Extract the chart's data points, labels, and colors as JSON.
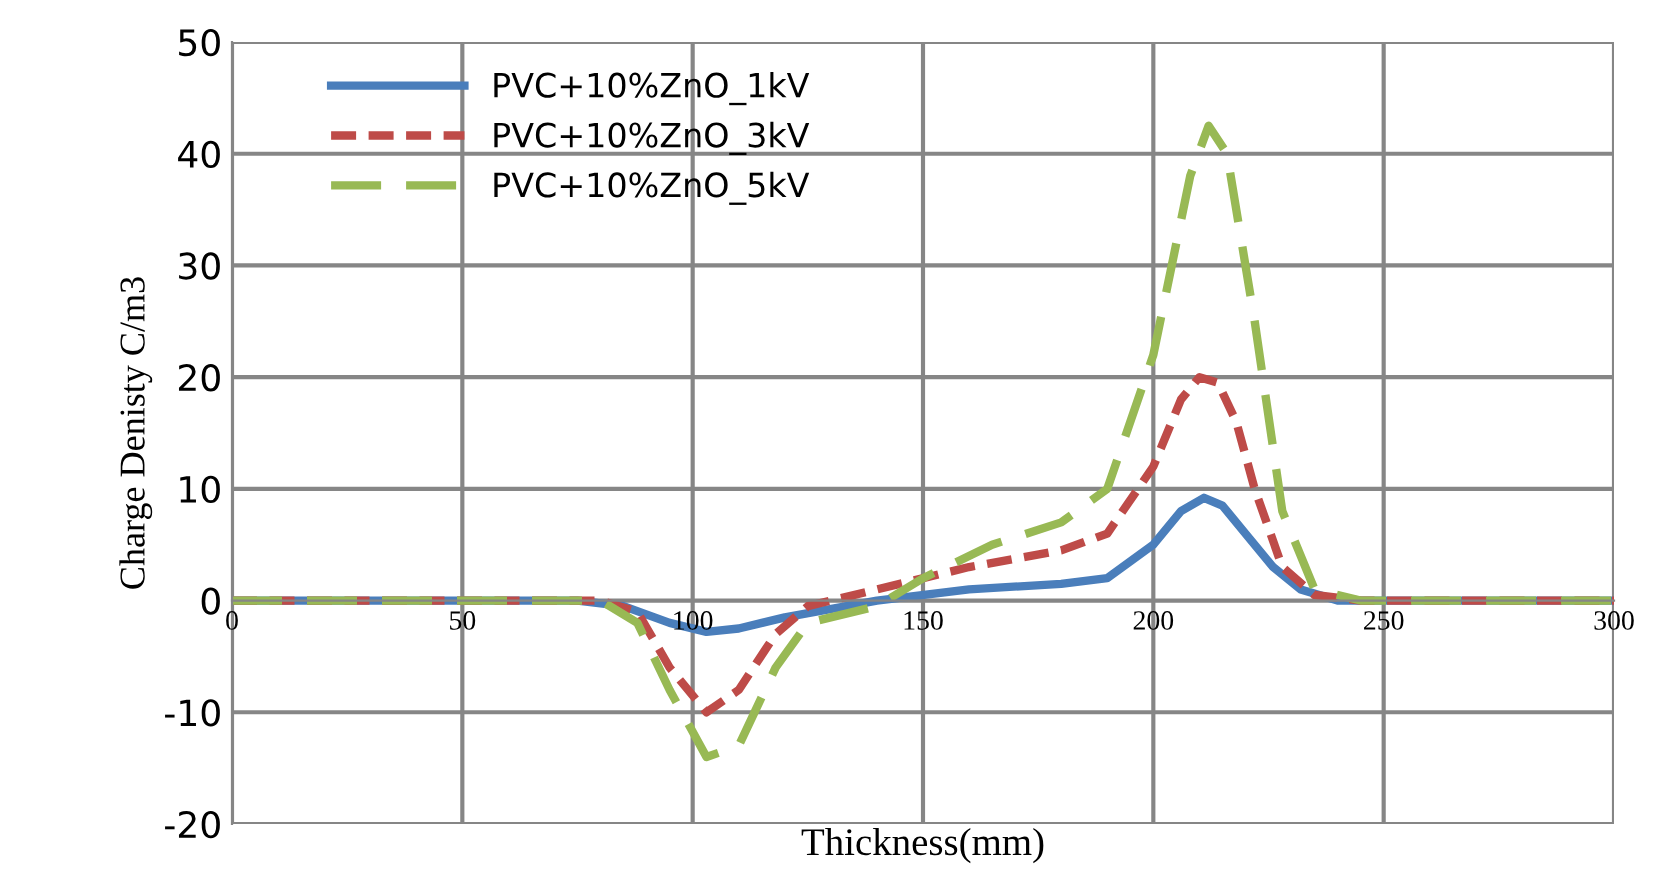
{
  "chart_data": {
    "type": "line",
    "xlabel": "Thickness(mm)",
    "ylabel": "Charge Denisty C/m3",
    "xlim": [
      0,
      300
    ],
    "ylim": [
      -20,
      50
    ],
    "xticks": [
      0,
      50,
      100,
      150,
      200,
      250,
      300
    ],
    "yticks": [
      -20,
      -10,
      0,
      10,
      20,
      30,
      40,
      50
    ],
    "grid": true,
    "legend": "top left",
    "marker": "none",
    "series": [
      {
        "name": "PVC+10%ZnO_1kV",
        "color": "#4a7ebb",
        "line_style": "solid",
        "x": [
          0,
          50,
          75,
          85,
          95,
          103,
          110,
          120,
          140,
          160,
          180,
          190,
          200,
          206,
          211,
          215,
          220,
          226,
          232,
          240,
          270,
          300
        ],
        "values": [
          0,
          0,
          0,
          -0.5,
          -2,
          -2.8,
          -2.5,
          -1.5,
          0,
          1,
          1.5,
          2,
          5,
          8,
          9.2,
          8.5,
          6,
          3,
          1,
          0,
          0,
          0
        ]
      },
      {
        "name": "PVC+10%ZnO_3kV",
        "color": "#be4b48",
        "line_style": "dashed",
        "x": [
          0,
          50,
          80,
          88,
          95,
          103,
          110,
          118,
          125,
          140,
          160,
          180,
          190,
          200,
          206,
          210,
          214,
          218,
          222,
          228,
          235,
          245,
          270,
          300
        ],
        "values": [
          0,
          0,
          0,
          -1,
          -6,
          -10,
          -8,
          -3,
          -0.5,
          1,
          3,
          4.5,
          6,
          12,
          18,
          20,
          19.5,
          16,
          10,
          3,
          0.5,
          0,
          0,
          0
        ]
      },
      {
        "name": "PVC+10%ZnO_5kV",
        "color": "#98b954",
        "line_style": "long_dashed",
        "x": [
          0,
          50,
          80,
          88,
          95,
          103,
          110,
          118,
          125,
          140,
          150,
          165,
          180,
          190,
          200,
          208,
          212,
          216,
          222,
          228,
          235,
          245,
          270,
          300
        ],
        "values": [
          0,
          0,
          0,
          -2,
          -8,
          -14,
          -13,
          -6,
          -2,
          -0.5,
          2,
          5,
          7,
          10,
          22,
          38,
          42.5,
          40,
          25,
          8,
          1,
          0,
          0,
          0
        ]
      }
    ]
  }
}
